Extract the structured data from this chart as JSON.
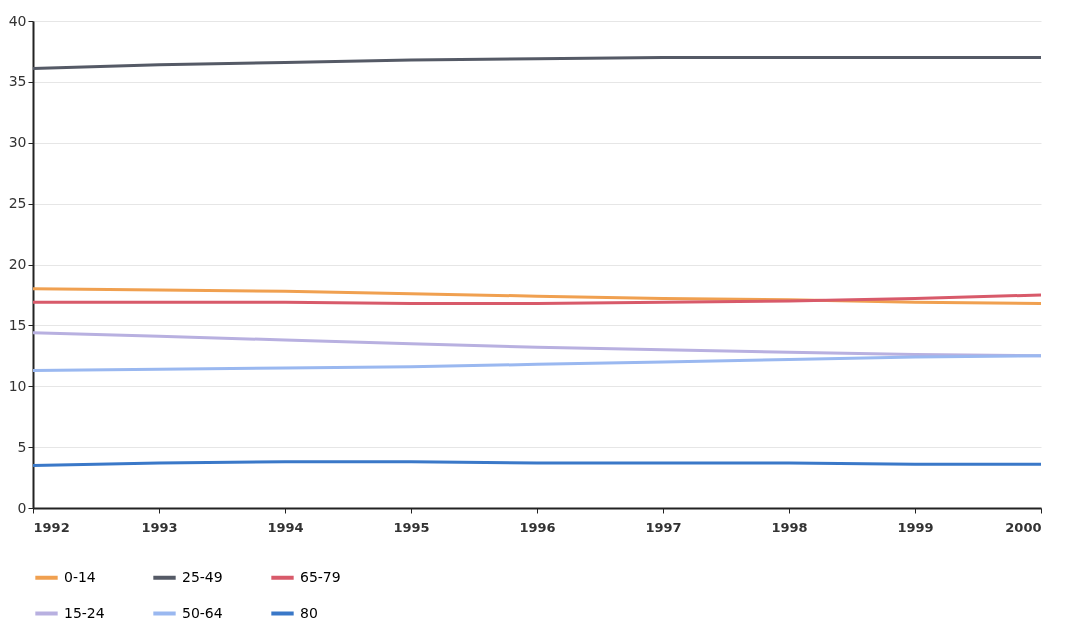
{
  "chart_data": {
    "type": "line",
    "x": [
      1992,
      1993,
      1994,
      1995,
      1996,
      1997,
      1998,
      1999,
      2000
    ],
    "xlim": [
      1992,
      2000
    ],
    "xticks": [
      1992,
      1993,
      1994,
      1995,
      1996,
      1997,
      1998,
      1999,
      2000
    ],
    "ylim": [
      0,
      40
    ],
    "yticks": [
      0,
      5,
      10,
      15,
      20,
      25,
      30,
      35,
      40
    ],
    "grid": "y",
    "legend": "bottom",
    "marker": "none",
    "line_style": "solid",
    "series": [
      {
        "name": "0-14",
        "color": "#f0a050",
        "values": [
          18.0,
          17.9,
          17.8,
          17.6,
          17.4,
          17.2,
          17.1,
          16.9,
          16.8
        ]
      },
      {
        "name": "25-49",
        "color": "#555a66",
        "values": [
          36.1,
          36.4,
          36.6,
          36.8,
          36.9,
          37.0,
          37.0,
          37.0,
          37.0
        ]
      },
      {
        "name": "65-79",
        "color": "#d85a6a",
        "values": [
          16.9,
          16.9,
          16.9,
          16.8,
          16.8,
          16.9,
          17.0,
          17.2,
          17.5
        ]
      },
      {
        "name": "15-24",
        "color": "#b8b0e0",
        "values": [
          14.4,
          14.1,
          13.8,
          13.5,
          13.2,
          13.0,
          12.8,
          12.6,
          12.5
        ]
      },
      {
        "name": "50-64",
        "color": "#9ab8f0",
        "values": [
          11.3,
          11.4,
          11.5,
          11.6,
          11.8,
          12.0,
          12.2,
          12.4,
          12.5
        ]
      },
      {
        "name": "80",
        "color": "#3a78c8",
        "values": [
          3.5,
          3.7,
          3.8,
          3.8,
          3.7,
          3.7,
          3.7,
          3.6,
          3.6
        ]
      }
    ]
  }
}
